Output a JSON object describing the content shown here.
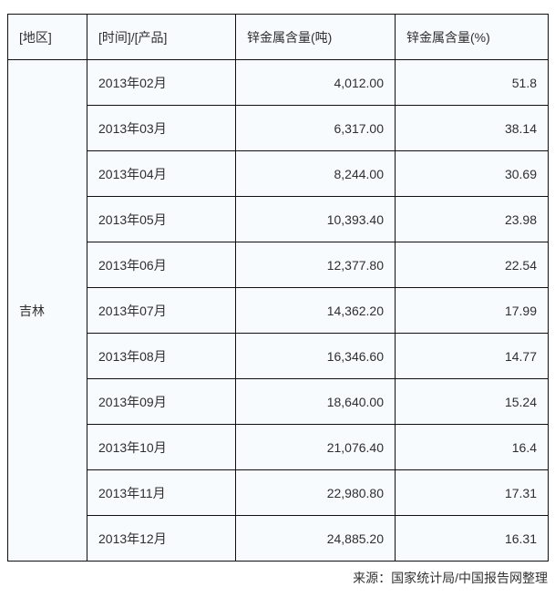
{
  "table": {
    "headers": {
      "region": "[地区]",
      "period": "[时间]/[产品]",
      "tons": "锌金属含量(吨)",
      "pct": "锌金属含量(%)"
    },
    "region": "吉林",
    "rows": [
      {
        "period": "2013年02月",
        "tons": "4,012.00",
        "pct": "51.8"
      },
      {
        "period": "2013年03月",
        "tons": "6,317.00",
        "pct": "38.14"
      },
      {
        "period": "2013年04月",
        "tons": "8,244.00",
        "pct": "30.69"
      },
      {
        "period": "2013年05月",
        "tons": "10,393.40",
        "pct": "23.98"
      },
      {
        "period": "2013年06月",
        "tons": "12,377.80",
        "pct": "22.54"
      },
      {
        "period": "2013年07月",
        "tons": "14,362.20",
        "pct": "17.99"
      },
      {
        "period": "2013年08月",
        "tons": "16,346.60",
        "pct": "14.77"
      },
      {
        "period": "2013年09月",
        "tons": "18,640.00",
        "pct": "15.24"
      },
      {
        "period": "2013年10月",
        "tons": "21,076.40",
        "pct": "16.4"
      },
      {
        "period": "2013年11月",
        "tons": "22,980.80",
        "pct": "17.31"
      },
      {
        "period": "2013年12月",
        "tons": "24,885.20",
        "pct": "16.31"
      }
    ]
  },
  "footer": {
    "source": "来源：国家统计局/中国报告网整理"
  },
  "colors": {
    "cell_background": "#f8fbfd",
    "border": "#101010",
    "text": "#2e2e2e",
    "page_background": "#ffffff"
  },
  "chart_data": {
    "type": "table",
    "title": "",
    "columns": [
      "[地区]",
      "[时间]/[产品]",
      "锌金属含量(吨)",
      "锌金属含量(%)"
    ],
    "region": "吉林",
    "rows": [
      [
        "2013年02月",
        4012.0,
        51.8
      ],
      [
        "2013年03月",
        6317.0,
        38.14
      ],
      [
        "2013年04月",
        8244.0,
        30.69
      ],
      [
        "2013年05月",
        10393.4,
        23.98
      ],
      [
        "2013年06月",
        12377.8,
        22.54
      ],
      [
        "2013年07月",
        14362.2,
        17.99
      ],
      [
        "2013年08月",
        16346.6,
        14.77
      ],
      [
        "2013年09月",
        18640.0,
        15.24
      ],
      [
        "2013年10月",
        21076.4,
        16.4
      ],
      [
        "2013年11月",
        22980.8,
        17.31
      ],
      [
        "2013年12月",
        24885.2,
        16.31
      ]
    ],
    "source": "来源：国家统计局/中国报告网整理"
  }
}
